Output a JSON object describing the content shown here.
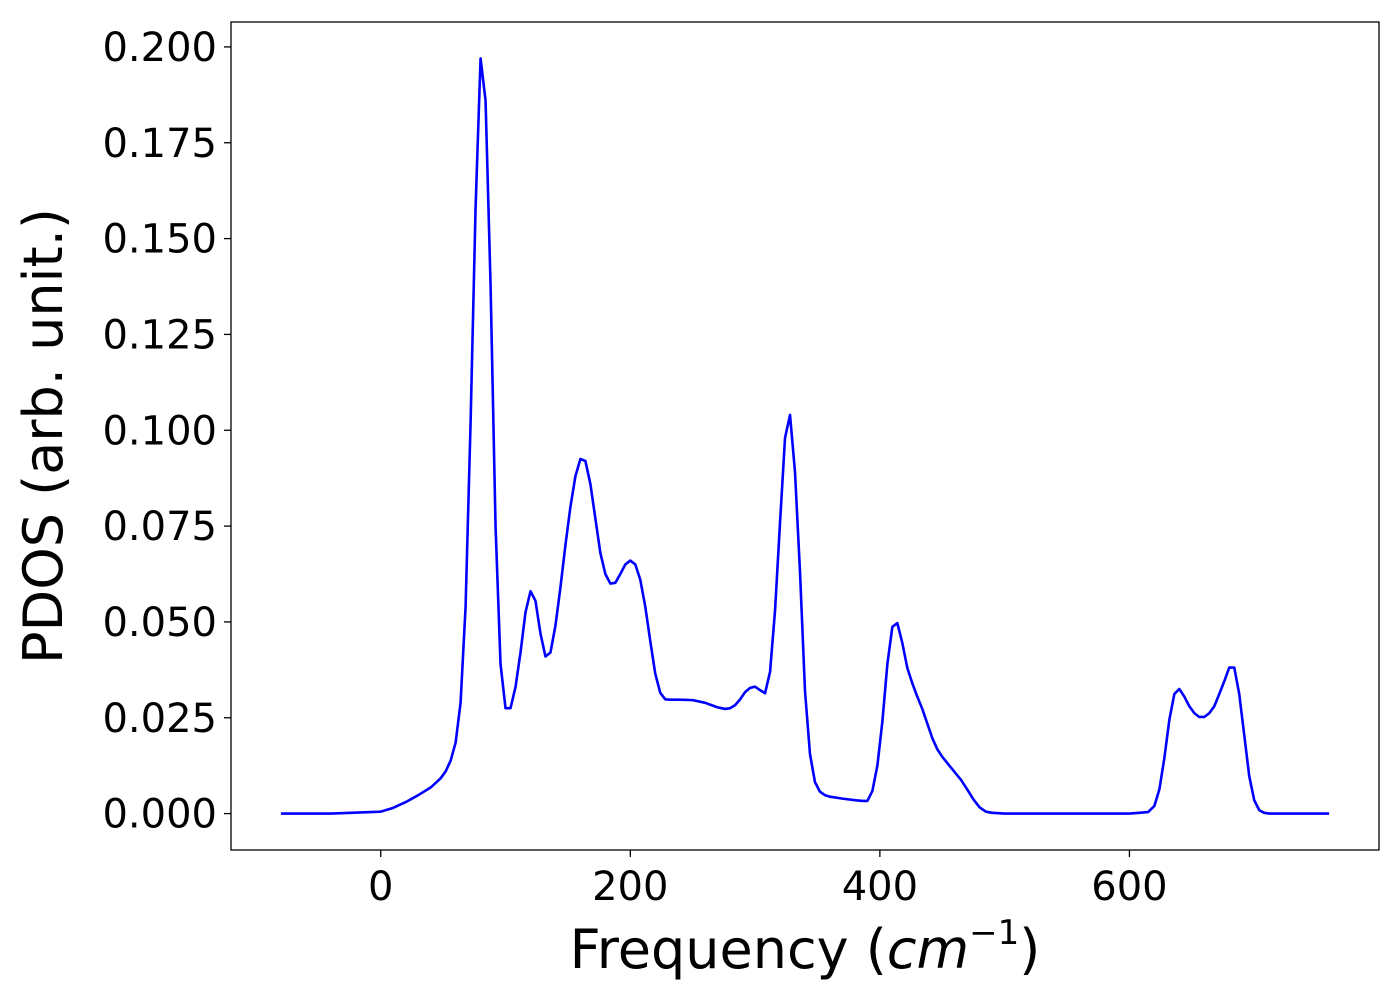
{
  "chart_data": {
    "type": "line",
    "title": "",
    "xlabel_main": "Frequency (",
    "xlabel_unit": "cm",
    "xlabel_exp": "−1",
    "xlabel_close": ")",
    "ylabel": "PDOS (arb. unit.)",
    "xlim": [
      -120,
      800
    ],
    "ylim": [
      -0.0095,
      0.2065
    ],
    "xticks": [
      0,
      200,
      400,
      600
    ],
    "xtick_labels": [
      "0",
      "200",
      "400",
      "600"
    ],
    "yticks": [
      0,
      0.025,
      0.05,
      0.075,
      0.1,
      0.125,
      0.15,
      0.175,
      0.2
    ],
    "ytick_labels": [
      "0.000",
      "0.025",
      "0.050",
      "0.075",
      "0.100",
      "0.125",
      "0.150",
      "0.175",
      "0.200"
    ],
    "grid": false,
    "legend": "none",
    "series": [
      {
        "color": "#0000ff",
        "x": [
          -80,
          -40,
          0,
          10,
          20,
          30,
          40,
          48,
          52,
          56,
          60,
          64,
          68,
          72,
          76,
          80,
          84,
          88,
          92,
          96,
          100,
          104,
          108,
          112,
          116,
          120,
          124,
          128,
          132,
          136,
          140,
          144,
          148,
          152,
          156,
          160,
          164,
          168,
          172,
          176,
          180,
          184,
          188,
          192,
          196,
          200,
          204,
          208,
          212,
          216,
          220,
          224,
          228,
          232,
          236,
          240,
          250,
          260,
          270,
          276,
          280,
          284,
          288,
          292,
          296,
          300,
          304,
          308,
          312,
          316,
          320,
          324,
          328,
          332,
          336,
          340,
          344,
          348,
          352,
          356,
          360,
          370,
          380,
          386,
          390,
          394,
          398,
          402,
          406,
          410,
          414,
          418,
          422,
          426,
          430,
          434,
          438,
          442,
          446,
          450,
          455,
          460,
          465,
          470,
          475,
          480,
          485,
          490,
          500,
          550,
          600,
          615,
          620,
          624,
          628,
          632,
          636,
          640,
          644,
          648,
          652,
          656,
          660,
          664,
          668,
          672,
          676,
          680,
          684,
          688,
          692,
          696,
          700,
          704,
          708,
          712,
          720,
          760
        ],
        "y": [
          0,
          0,
          0.0005,
          0.0015,
          0.003,
          0.0048,
          0.0068,
          0.0092,
          0.011,
          0.0138,
          0.0185,
          0.029,
          0.054,
          0.102,
          0.158,
          0.197,
          0.186,
          0.138,
          0.075,
          0.039,
          0.0275,
          0.0275,
          0.033,
          0.042,
          0.0525,
          0.058,
          0.0555,
          0.047,
          0.041,
          0.042,
          0.049,
          0.059,
          0.07,
          0.08,
          0.088,
          0.0925,
          0.092,
          0.086,
          0.077,
          0.068,
          0.0625,
          0.06,
          0.0602,
          0.0625,
          0.065,
          0.066,
          0.065,
          0.061,
          0.054,
          0.045,
          0.0365,
          0.0315,
          0.0298,
          0.0297,
          0.0297,
          0.0297,
          0.0296,
          0.0289,
          0.0277,
          0.0273,
          0.0275,
          0.0283,
          0.0298,
          0.0317,
          0.0328,
          0.0331,
          0.0322,
          0.0314,
          0.037,
          0.053,
          0.076,
          0.098,
          0.104,
          0.089,
          0.063,
          0.032,
          0.0155,
          0.0082,
          0.0057,
          0.0048,
          0.0044,
          0.0039,
          0.0035,
          0.0033,
          0.0033,
          0.0059,
          0.0125,
          0.024,
          0.039,
          0.0487,
          0.0497,
          0.0445,
          0.038,
          0.034,
          0.0305,
          0.0273,
          0.0235,
          0.0197,
          0.0168,
          0.0148,
          0.0128,
          0.0108,
          0.0088,
          0.0063,
          0.0037,
          0.0016,
          0.0005,
          0.0002,
          0,
          0,
          0,
          0.0004,
          0.002,
          0.0063,
          0.0145,
          0.0245,
          0.0312,
          0.0325,
          0.0305,
          0.028,
          0.0262,
          0.0252,
          0.0252,
          0.0262,
          0.028,
          0.0312,
          0.0345,
          0.0381,
          0.0381,
          0.0312,
          0.0205,
          0.0098,
          0.0035,
          0.0009,
          0.0002,
          0,
          0,
          0
        ]
      }
    ]
  }
}
